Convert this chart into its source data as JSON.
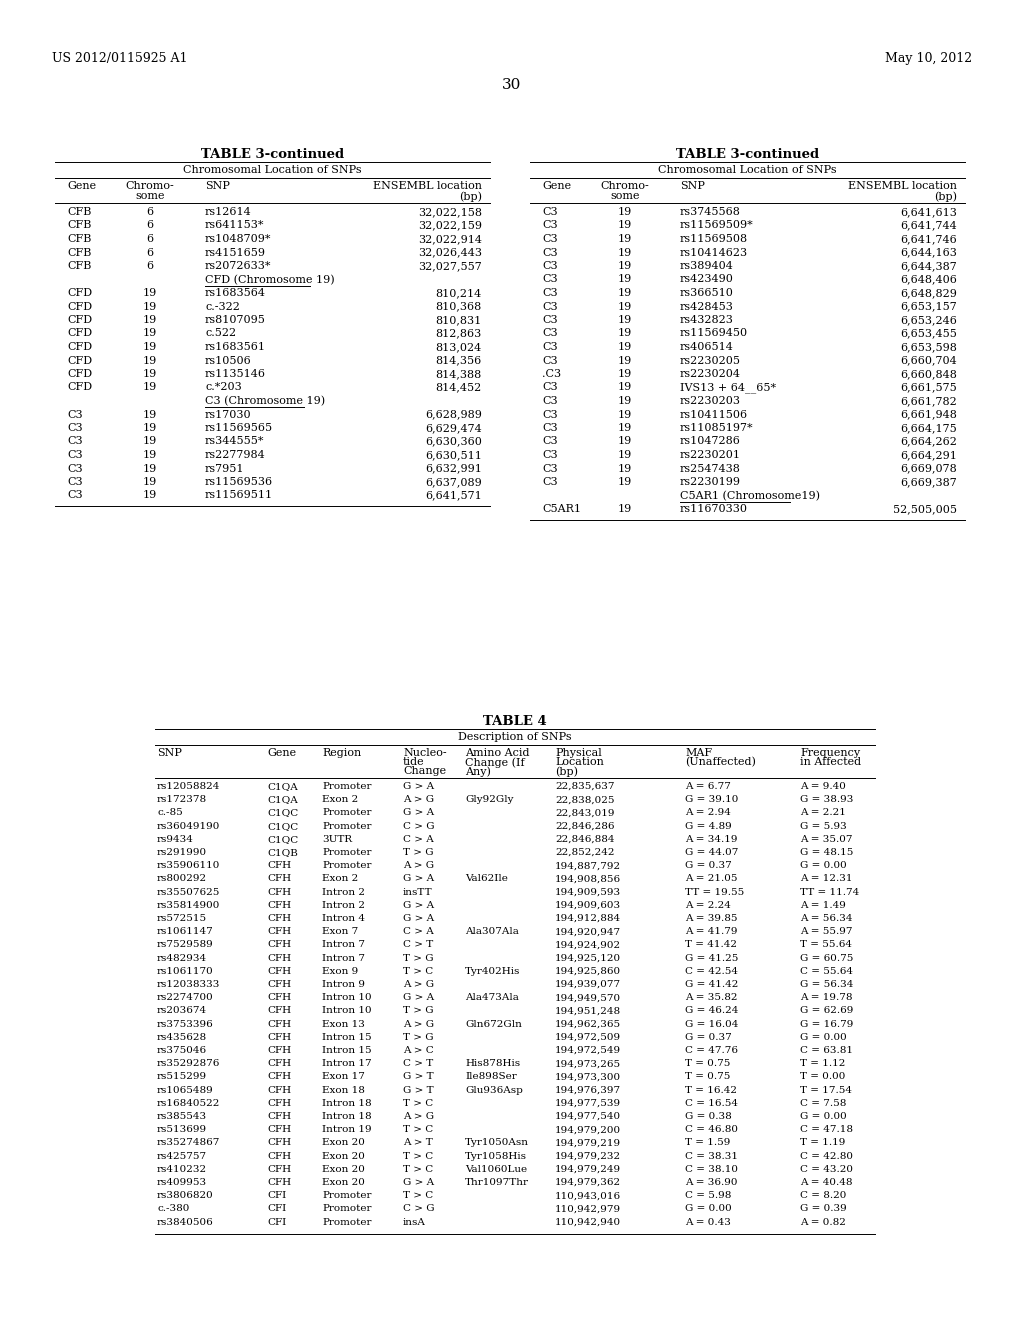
{
  "header_left": "US 2012/0115925 A1",
  "header_right": "May 10, 2012",
  "page_number": "30",
  "table3_title": "TABLE 3-continued",
  "table3_subtitle": "Chromosomal Location of SNPs",
  "table3_left_data": [
    [
      "CFB",
      "6",
      "rs12614",
      "32,022,158"
    ],
    [
      "CFB",
      "6",
      "rs641153*",
      "32,022,159"
    ],
    [
      "CFB",
      "6",
      "rs1048709*",
      "32,022,914"
    ],
    [
      "CFB",
      "6",
      "rs4151659",
      "32,026,443"
    ],
    [
      "CFB",
      "6",
      "rs2072633*",
      "32,027,557"
    ],
    [
      "",
      "",
      "CFD (Chromosome 19)",
      ""
    ],
    [
      "CFD",
      "19",
      "rs1683564",
      "810,214"
    ],
    [
      "CFD",
      "19",
      "c.-322",
      "810,368"
    ],
    [
      "CFD",
      "19",
      "rs8107095",
      "810,831"
    ],
    [
      "CFD",
      "19",
      "c.522",
      "812,863"
    ],
    [
      "CFD",
      "19",
      "rs1683561",
      "813,024"
    ],
    [
      "CFD",
      "19",
      "rs10506",
      "814,356"
    ],
    [
      "CFD",
      "19",
      "rs1135146",
      "814,388"
    ],
    [
      "CFD",
      "19",
      "c.*203",
      "814,452"
    ],
    [
      "",
      "",
      "C3 (Chromosome 19)",
      ""
    ],
    [
      "C3",
      "19",
      "rs17030",
      "6,628,989"
    ],
    [
      "C3",
      "19",
      "rs11569565",
      "6,629,474"
    ],
    [
      "C3",
      "19",
      "rs344555*",
      "6,630,360"
    ],
    [
      "C3",
      "19",
      "rs2277984",
      "6,630,511"
    ],
    [
      "C3",
      "19",
      "rs7951",
      "6,632,991"
    ],
    [
      "C3",
      "19",
      "rs11569536",
      "6,637,089"
    ],
    [
      "C3",
      "19",
      "rs11569511",
      "6,641,571"
    ]
  ],
  "table3_right_data": [
    [
      "C3",
      "19",
      "rs3745568",
      "6,641,613"
    ],
    [
      "C3",
      "19",
      "rs11569509*",
      "6,641,744"
    ],
    [
      "C3",
      "19",
      "rs11569508",
      "6,641,746"
    ],
    [
      "C3",
      "19",
      "rs10414623",
      "6,644,163"
    ],
    [
      "C3",
      "19",
      "rs389404",
      "6,644,387"
    ],
    [
      "C3",
      "19",
      "rs423490",
      "6,648,406"
    ],
    [
      "C3",
      "19",
      "rs366510",
      "6,648,829"
    ],
    [
      "C3",
      "19",
      "rs428453",
      "6,653,157"
    ],
    [
      "C3",
      "19",
      "rs432823",
      "6,653,246"
    ],
    [
      "C3",
      "19",
      "rs11569450",
      "6,653,455"
    ],
    [
      "C3",
      "19",
      "rs406514",
      "6,653,598"
    ],
    [
      "C3",
      "19",
      "rs2230205",
      "6,660,704"
    ],
    [
      ".C3",
      "19",
      "rs2230204",
      "6,660,848"
    ],
    [
      "C3",
      "19",
      "IVS13 + 64__65*",
      "6,661,575"
    ],
    [
      "C3",
      "19",
      "rs2230203",
      "6,661,782"
    ],
    [
      "C3",
      "19",
      "rs10411506",
      "6,661,948"
    ],
    [
      "C3",
      "19",
      "rs11085197*",
      "6,664,175"
    ],
    [
      "C3",
      "19",
      "rs1047286",
      "6,664,262"
    ],
    [
      "C3",
      "19",
      "rs2230201",
      "6,664,291"
    ],
    [
      "C3",
      "19",
      "rs2547438",
      "6,669,078"
    ],
    [
      "C3",
      "19",
      "rs2230199",
      "6,669,387"
    ],
    [
      "",
      "",
      "C5AR1 (Chromosome19)",
      ""
    ],
    [
      "C5AR1",
      "19",
      "rs11670330",
      "52,505,005"
    ]
  ],
  "table4_title": "TABLE 4",
  "table4_subtitle": "Description of SNPs",
  "table4_col_headers": [
    "SNP",
    "Gene",
    "Region",
    "Nucleo-\ntide\nChange",
    "Amino Acid\nChange (If\nAny)",
    "Physical\nLocation\n(bp)",
    "MAF\n(Unaffected)",
    "Frequency\nin Affected"
  ],
  "table4_data": [
    [
      "rs12058824",
      "C1QA",
      "Promoter",
      "G > A",
      "",
      "22,835,637",
      "A = 6.77",
      "A = 9.40"
    ],
    [
      "rs172378",
      "C1QA",
      "Exon 2",
      "A > G",
      "Gly92Gly",
      "22,838,025",
      "G = 39.10",
      "G = 38.93"
    ],
    [
      "c.-85",
      "C1QC",
      "Promoter",
      "G > A",
      "",
      "22,843,019",
      "A = 2.94",
      "A = 2.21"
    ],
    [
      "rs36049190",
      "C1QC",
      "Promoter",
      "C > G",
      "",
      "22,846,286",
      "G = 4.89",
      "G = 5.93"
    ],
    [
      "rs9434",
      "C1QC",
      "3UTR",
      "C > A",
      "",
      "22,846,884",
      "A = 34.19",
      "A = 35.07"
    ],
    [
      "rs291990",
      "C1QB",
      "Promoter",
      "T > G",
      "",
      "22,852,242",
      "G = 44.07",
      "G = 48.15"
    ],
    [
      "rs35906110",
      "CFH",
      "Promoter",
      "A > G",
      "",
      "194,887,792",
      "G = 0.37",
      "G = 0.00"
    ],
    [
      "rs800292",
      "CFH",
      "Exon 2",
      "G > A",
      "Val62Ile",
      "194,908,856",
      "A = 21.05",
      "A = 12.31"
    ],
    [
      "rs35507625",
      "CFH",
      "Intron 2",
      "insTT",
      "",
      "194,909,593",
      "TT = 19.55",
      "TT = 11.74"
    ],
    [
      "rs35814900",
      "CFH",
      "Intron 2",
      "G > A",
      "",
      "194,909,603",
      "A = 2.24",
      "A = 1.49"
    ],
    [
      "rs572515",
      "CFH",
      "Intron 4",
      "G > A",
      "",
      "194,912,884",
      "A = 39.85",
      "A = 56.34"
    ],
    [
      "rs1061147",
      "CFH",
      "Exon 7",
      "C > A",
      "Ala307Ala",
      "194,920,947",
      "A = 41.79",
      "A = 55.97"
    ],
    [
      "rs7529589",
      "CFH",
      "Intron 7",
      "C > T",
      "",
      "194,924,902",
      "T = 41.42",
      "T = 55.64"
    ],
    [
      "rs482934",
      "CFH",
      "Intron 7",
      "T > G",
      "",
      "194,925,120",
      "G = 41.25",
      "G = 60.75"
    ],
    [
      "rs1061170",
      "CFH",
      "Exon 9",
      "T > C",
      "Tyr402His",
      "194,925,860",
      "C = 42.54",
      "C = 55.64"
    ],
    [
      "rs12038333",
      "CFH",
      "Intron 9",
      "A > G",
      "",
      "194,939,077",
      "G = 41.42",
      "G = 56.34"
    ],
    [
      "rs2274700",
      "CFH",
      "Intron 10",
      "G > A",
      "Ala473Ala",
      "194,949,570",
      "A = 35.82",
      "A = 19.78"
    ],
    [
      "rs203674",
      "CFH",
      "Intron 10",
      "T > G",
      "",
      "194,951,248",
      "G = 46.24",
      "G = 62.69"
    ],
    [
      "rs3753396",
      "CFH",
      "Exon 13",
      "A > G",
      "Gln672Gln",
      "194,962,365",
      "G = 16.04",
      "G = 16.79"
    ],
    [
      "rs435628",
      "CFH",
      "Intron 15",
      "T > G",
      "",
      "194,972,509",
      "G = 0.37",
      "G = 0.00"
    ],
    [
      "rs375046",
      "CFH",
      "Intron 15",
      "A > C",
      "",
      "194,972,549",
      "C = 47.76",
      "C = 63.81"
    ],
    [
      "rs35292876",
      "CFH",
      "Intron 17",
      "C > T",
      "His878His",
      "194,973,265",
      "T = 0.75",
      "T = 1.12"
    ],
    [
      "rs515299",
      "CFH",
      "Exon 17",
      "G > T",
      "Ile898Ser",
      "194,973,300",
      "T = 0.75",
      "T = 0.00"
    ],
    [
      "rs1065489",
      "CFH",
      "Exon 18",
      "G > T",
      "Glu936Asp",
      "194,976,397",
      "T = 16.42",
      "T = 17.54"
    ],
    [
      "rs16840522",
      "CFH",
      "Intron 18",
      "T > C",
      "",
      "194,977,539",
      "C = 16.54",
      "C = 7.58"
    ],
    [
      "rs385543",
      "CFH",
      "Intron 18",
      "A > G",
      "",
      "194,977,540",
      "G = 0.38",
      "G = 0.00"
    ],
    [
      "rs513699",
      "CFH",
      "Intron 19",
      "T > C",
      "",
      "194,979,200",
      "C = 46.80",
      "C = 47.18"
    ],
    [
      "rs35274867",
      "CFH",
      "Exon 20",
      "A > T",
      "Tyr1050Asn",
      "194,979,219",
      "T = 1.59",
      "T = 1.19"
    ],
    [
      "rs425757",
      "CFH",
      "Exon 20",
      "T > C",
      "Tyr1058His",
      "194,979,232",
      "C = 38.31",
      "C = 42.80"
    ],
    [
      "rs410232",
      "CFH",
      "Exon 20",
      "T > C",
      "Val1060Lue",
      "194,979,249",
      "C = 38.10",
      "C = 43.20"
    ],
    [
      "rs409953",
      "CFH",
      "Exon 20",
      "G > A",
      "Thr1097Thr",
      "194,979,362",
      "A = 36.90",
      "A = 40.48"
    ],
    [
      "rs3806820",
      "CFI",
      "Promoter",
      "T > C",
      "",
      "110,943,016",
      "C = 5.98",
      "C = 8.20"
    ],
    [
      "c.-380",
      "CFI",
      "Promoter",
      "C > G",
      "",
      "110,942,979",
      "G = 0.00",
      "G = 0.39"
    ],
    [
      "rs3840506",
      "CFI",
      "Promoter",
      "insA",
      "",
      "110,942,940",
      "A = 0.43",
      "A = 0.82"
    ]
  ]
}
